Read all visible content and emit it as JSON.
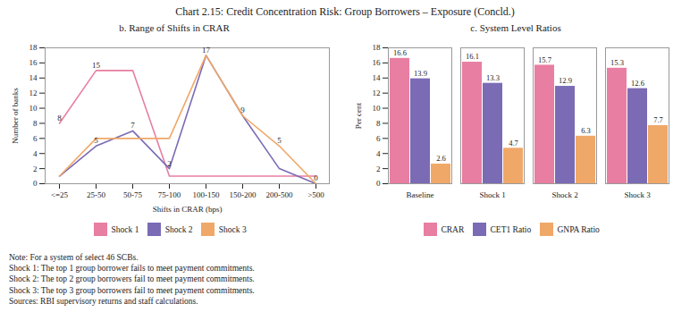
{
  "title": "Chart 2.15: Credit Concentration Risk: Group Borrowers – Exposure (Concld.)",
  "notes": [
    "Note: For a system of select 46 SCBs.",
    "Shock 1: The top 1 group borrower fails to meet payment commitments.",
    "Shock 2: The top 2 group borrowers fail to meet payment commitments.",
    "Shock 3: The top 3 group borrowers fail to meet payment commitments.",
    "Sources: RBI supervisory returns and staff calculations."
  ],
  "chart_data": [
    {
      "type": "line",
      "title": "b. Range of Shifts in CRAR",
      "xlabel": "Shifts in CRAR (bps)",
      "ylabel": "Number of banks",
      "categories": [
        "<=25",
        "25-50",
        "50-75",
        "75-100",
        "100-150",
        "150-200",
        "200-500",
        ">500"
      ],
      "series": [
        {
          "name": "Shock 1",
          "color": "#e87ea1",
          "values": [
            8,
            15,
            15,
            1,
            1,
            1,
            1,
            1
          ],
          "value_labels": [
            "8",
            "15",
            null,
            null,
            null,
            null,
            null,
            null
          ]
        },
        {
          "name": "Shock 2",
          "color": "#7b6bb5",
          "values": [
            1,
            5,
            7,
            2,
            17,
            9,
            2,
            0
          ],
          "value_labels": [
            null,
            "5",
            "7",
            "2",
            "17",
            "9",
            null,
            "0"
          ]
        },
        {
          "name": "Shock 3",
          "color": "#f0a868",
          "values": [
            1,
            6,
            6,
            6,
            17,
            9,
            5,
            0
          ],
          "value_labels": [
            null,
            null,
            null,
            null,
            null,
            null,
            "5",
            null
          ]
        }
      ],
      "ylim": [
        0,
        18
      ],
      "yticks": [
        0,
        2,
        4,
        6,
        8,
        10,
        12,
        14,
        16,
        18
      ],
      "grid": false,
      "legend": "bottom",
      "data_labels": true
    },
    {
      "type": "bar",
      "title": "c. System Level Ratios",
      "ylabel": "Per cent",
      "categories": [
        "Baseline",
        "Shock 1",
        "Shock 2",
        "Shock 3"
      ],
      "series": [
        {
          "name": "CRAR",
          "color": "#e87ea1",
          "values": [
            16.6,
            16.1,
            15.7,
            15.3
          ]
        },
        {
          "name": "CET1 Ratio",
          "color": "#7b6bb5",
          "values": [
            13.9,
            13.3,
            12.9,
            12.6
          ]
        },
        {
          "name": "GNPA Ratio",
          "color": "#f0a868",
          "values": [
            2.6,
            4.7,
            6.3,
            7.7
          ]
        }
      ],
      "ylim": [
        0,
        18
      ],
      "yticks": [
        0,
        2,
        4,
        6,
        8,
        10,
        12,
        14,
        16,
        18
      ],
      "grid": false,
      "legend": "bottom",
      "data_labels": true
    }
  ]
}
